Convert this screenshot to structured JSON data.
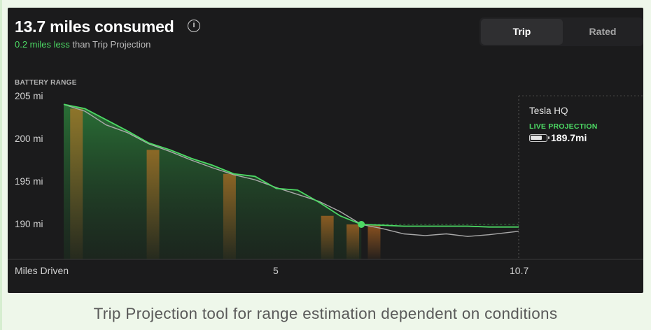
{
  "header": {
    "title": "13.7 miles consumed",
    "subtitle_highlight": "0.2 miles less",
    "subtitle_rest": " than Trip Projection",
    "info_icon": "info-circle-icon"
  },
  "toggle": {
    "options": [
      {
        "label": "Trip",
        "selected": true
      },
      {
        "label": "Rated",
        "selected": false
      }
    ]
  },
  "destination": {
    "name": "Tesla HQ",
    "projection_label": "LIVE PROJECTION",
    "battery_icon": "battery-icon",
    "value": "189.7mi"
  },
  "caption": "Trip Projection tool for range estimation dependent on conditions",
  "colors": {
    "background": "#1b1b1c",
    "projection_green": "#4cd964",
    "actual_line": "#a9a9a9",
    "energy_orange": "#e07b22"
  },
  "chart_data": {
    "type": "line",
    "ylabel": "BATTERY RANGE",
    "xlabel": "Miles Driven",
    "y_ticks": [
      "205 mi",
      "200 mi",
      "195 mi",
      "190 mi"
    ],
    "x_ticks": [
      "5",
      "10.7"
    ],
    "ylim": [
      186,
      205
    ],
    "xlim": [
      0,
      10.7
    ],
    "grid": false,
    "series": [
      {
        "role": "projection",
        "color": "#4cd964",
        "x": [
          0,
          0.5,
          1.0,
          1.5,
          2.0,
          2.5,
          3.0,
          3.5,
          4.0,
          4.5,
          5.0,
          5.5,
          6.0,
          6.5,
          7.0,
          7.5,
          8.0,
          8.5,
          9.0,
          9.5,
          10.0,
          10.7
        ],
        "y": [
          204.0,
          203.5,
          202.2,
          200.9,
          199.5,
          198.7,
          197.7,
          196.9,
          195.9,
          195.6,
          194.2,
          194.0,
          192.6,
          191.0,
          190.0,
          189.9,
          189.8,
          189.8,
          189.8,
          189.8,
          189.7,
          189.7
        ]
      },
      {
        "role": "actual",
        "color": "#a9a9a9",
        "x": [
          0,
          0.5,
          1.0,
          1.5,
          2.0,
          2.5,
          3.0,
          3.5,
          4.0,
          4.5,
          5.0,
          5.5,
          6.0,
          6.5,
          7.0,
          7.5,
          8.0,
          8.5,
          9.0,
          9.5,
          10.0,
          10.7
        ],
        "y": [
          204.0,
          203.2,
          201.6,
          200.7,
          199.4,
          198.5,
          197.5,
          196.6,
          195.8,
          195.2,
          194.3,
          193.5,
          192.7,
          191.5,
          190.0,
          189.5,
          188.9,
          188.7,
          188.9,
          188.6,
          188.8,
          189.2
        ]
      }
    ],
    "current_position": {
      "x": 7.0,
      "y": 190.0
    },
    "high_energy_bands_x": [
      0.3,
      2.1,
      3.9,
      6.2,
      6.8,
      7.3
    ]
  }
}
